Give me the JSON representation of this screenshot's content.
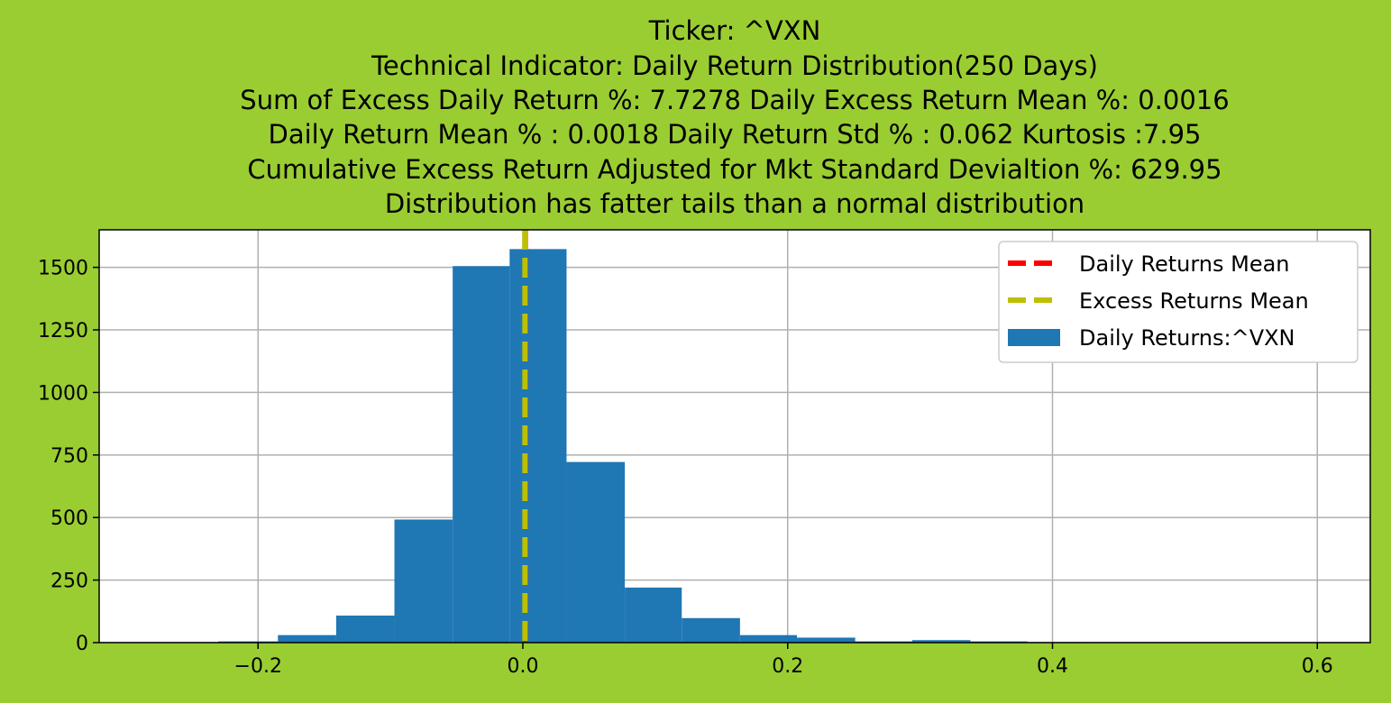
{
  "chart_data": {
    "type": "bar",
    "title_lines": [
      "Ticker: ^VXN",
      "Technical Indicator: Daily Return Distribution(250 Days)",
      "Sum of Excess Daily Return %: 7.7278   Daily Excess Return Mean %: 0.0016",
      "Daily Return Mean % : 0.0018    Daily Return Std % : 0.062  Kurtosis :7.95",
      "Cumulative Excess Return Adjusted for Mkt Standard Devialtion %: 629.95",
      "Distribution has fatter tails than a normal distribution"
    ],
    "xlabel": "",
    "ylabel": "",
    "xlim": [
      -0.32,
      0.64
    ],
    "ylim": [
      0,
      1650
    ],
    "x_ticks": [
      -0.2,
      0.0,
      0.2,
      0.4,
      0.6
    ],
    "x_tick_labels": [
      "−0.2",
      "0.0",
      "0.2",
      "0.4",
      "0.6"
    ],
    "y_ticks": [
      0,
      250,
      500,
      750,
      1000,
      1250,
      1500
    ],
    "y_tick_labels": [
      "0",
      "250",
      "500",
      "750",
      "1000",
      "1250",
      "1500"
    ],
    "grid": true,
    "legend_position": "top-right",
    "bins": [
      {
        "x0": -0.23,
        "x1": -0.185,
        "count": 5
      },
      {
        "x0": -0.185,
        "x1": -0.141,
        "count": 30
      },
      {
        "x0": -0.141,
        "x1": -0.097,
        "count": 108
      },
      {
        "x0": -0.097,
        "x1": -0.053,
        "count": 492
      },
      {
        "x0": -0.053,
        "x1": -0.01,
        "count": 1505
      },
      {
        "x0": -0.01,
        "x1": 0.033,
        "count": 1573
      },
      {
        "x0": 0.033,
        "x1": 0.077,
        "count": 722
      },
      {
        "x0": 0.077,
        "x1": 0.12,
        "count": 220
      },
      {
        "x0": 0.12,
        "x1": 0.164,
        "count": 98
      },
      {
        "x0": 0.164,
        "x1": 0.207,
        "count": 30
      },
      {
        "x0": 0.207,
        "x1": 0.251,
        "count": 20
      },
      {
        "x0": 0.251,
        "x1": 0.294,
        "count": 5
      },
      {
        "x0": 0.294,
        "x1": 0.338,
        "count": 10
      },
      {
        "x0": 0.338,
        "x1": 0.381,
        "count": 5
      },
      {
        "x0": 0.381,
        "x1": 0.425,
        "count": 2
      },
      {
        "x0": 0.425,
        "x1": 0.468,
        "count": 1
      },
      {
        "x0": 0.468,
        "x1": 0.512,
        "count": 1
      },
      {
        "x0": 0.512,
        "x1": 0.555,
        "count": 1
      },
      {
        "x0": 0.555,
        "x1": 0.599,
        "count": 1
      }
    ],
    "mean_lines": [
      {
        "name": "Daily Returns Mean",
        "x": 0.0018,
        "color": "#ff0000",
        "style": "dashed"
      },
      {
        "name": "Excess Returns Mean",
        "x": 0.0016,
        "color": "#bfbf00",
        "style": "dashed"
      }
    ],
    "series": [
      {
        "name": "Daily Returns:^VXN",
        "color": "#1f77b4"
      }
    ],
    "colors": {
      "background": "#9acd32",
      "plot_area": "#ffffff",
      "grid": "#b0b0b0",
      "bars": "#1f77b4"
    }
  }
}
